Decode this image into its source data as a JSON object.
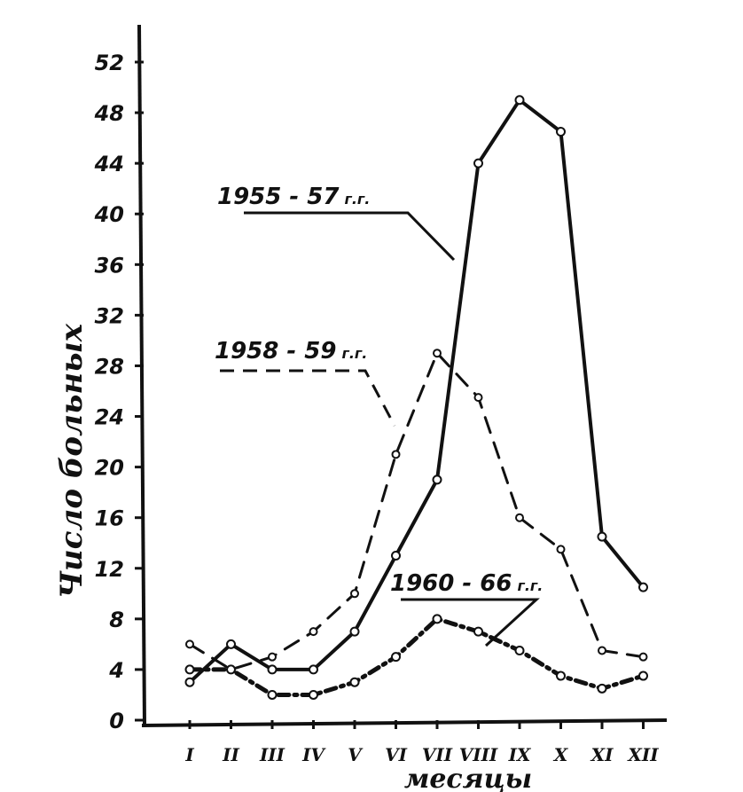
{
  "chart_data": {
    "type": "line",
    "title": "",
    "xlabel": "месяцы",
    "ylabel": "Число больных",
    "categories": [
      "I",
      "II",
      "III",
      "IV",
      "V",
      "VI",
      "VII",
      "VIII",
      "IX",
      "X",
      "XI",
      "XII"
    ],
    "category_labels": [
      "I",
      "II",
      "III",
      "IV",
      "V",
      "VI",
      "VII",
      "VIII",
      "IX",
      "X",
      "XI",
      "XII"
    ],
    "yticks": [
      0,
      4,
      8,
      12,
      16,
      20,
      24,
      28,
      32,
      36,
      40,
      44,
      48,
      52
    ],
    "ylim": [
      0,
      54
    ],
    "grid": false,
    "legend": "inline-labels",
    "series": [
      {
        "name": "1955-57 г.г.",
        "label_main": "1955 - 57",
        "label_suffix": "г.г.",
        "style": "solid",
        "values": [
          3,
          6,
          4,
          4,
          7,
          13,
          19,
          44,
          49,
          46.5,
          14.5,
          10.5
        ]
      },
      {
        "name": "1958-59 г.г.",
        "label_main": "1958 - 59",
        "label_suffix": "г.г.",
        "style": "dashed",
        "values": [
          6,
          4,
          5,
          7,
          10,
          21,
          29,
          25.5,
          16,
          13.5,
          5.5,
          5
        ]
      },
      {
        "name": "1960-66 г.г.",
        "label_main": "1960 - 66",
        "label_suffix": "г.г.",
        "style": "dashdot",
        "values": [
          4,
          4,
          2,
          2,
          3,
          5,
          8,
          7,
          5.5,
          3.5,
          2.5,
          3.5
        ]
      }
    ]
  }
}
